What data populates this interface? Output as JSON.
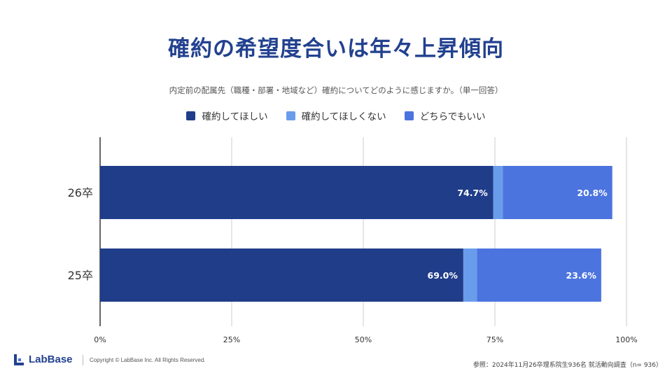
{
  "title": "確約の希望度合いは年々上昇傾向",
  "colors": {
    "title": "#22418f",
    "series_dark": "#203d8a",
    "series_light": "#6a9cec",
    "series_mid": "#4c74df",
    "grid": "#cccccc",
    "axis": "#333333"
  },
  "chart_data": {
    "type": "bar",
    "orientation": "horizontal",
    "stacked": true,
    "subtitle": "内定前の配属先（職種・部署・地域など）確約についてどのように感じますか。（単一回答）",
    "categories": [
      "26卒",
      "25卒"
    ],
    "series": [
      {
        "name": "確約してほしい",
        "values": [
          74.7,
          69.0
        ],
        "labels": [
          "74.7%",
          "69.0%"
        ],
        "color": "#203d8a"
      },
      {
        "name": "確約してほしくない",
        "values": [
          1.8,
          2.6
        ],
        "labels": [
          "1.8%",
          "2.6%"
        ],
        "color": "#6a9cec"
      },
      {
        "name": "どちらでもいい",
        "values": [
          20.8,
          23.6
        ],
        "labels": [
          "20.8%",
          "23.6%"
        ],
        "color": "#4c74df"
      }
    ],
    "xlim": [
      0,
      100
    ],
    "xticks": [
      "0%",
      "25%",
      "50%",
      "75%",
      "100%"
    ],
    "grid": true,
    "legend_position": "top-center"
  },
  "footer": {
    "logo_text": "LabBase",
    "copyright": "Copyright ©  LabBase Inc. All Rights Reserved.",
    "source": "参照：2024年11月26卒理系院生936名 就活動向調査（n= 936）"
  }
}
